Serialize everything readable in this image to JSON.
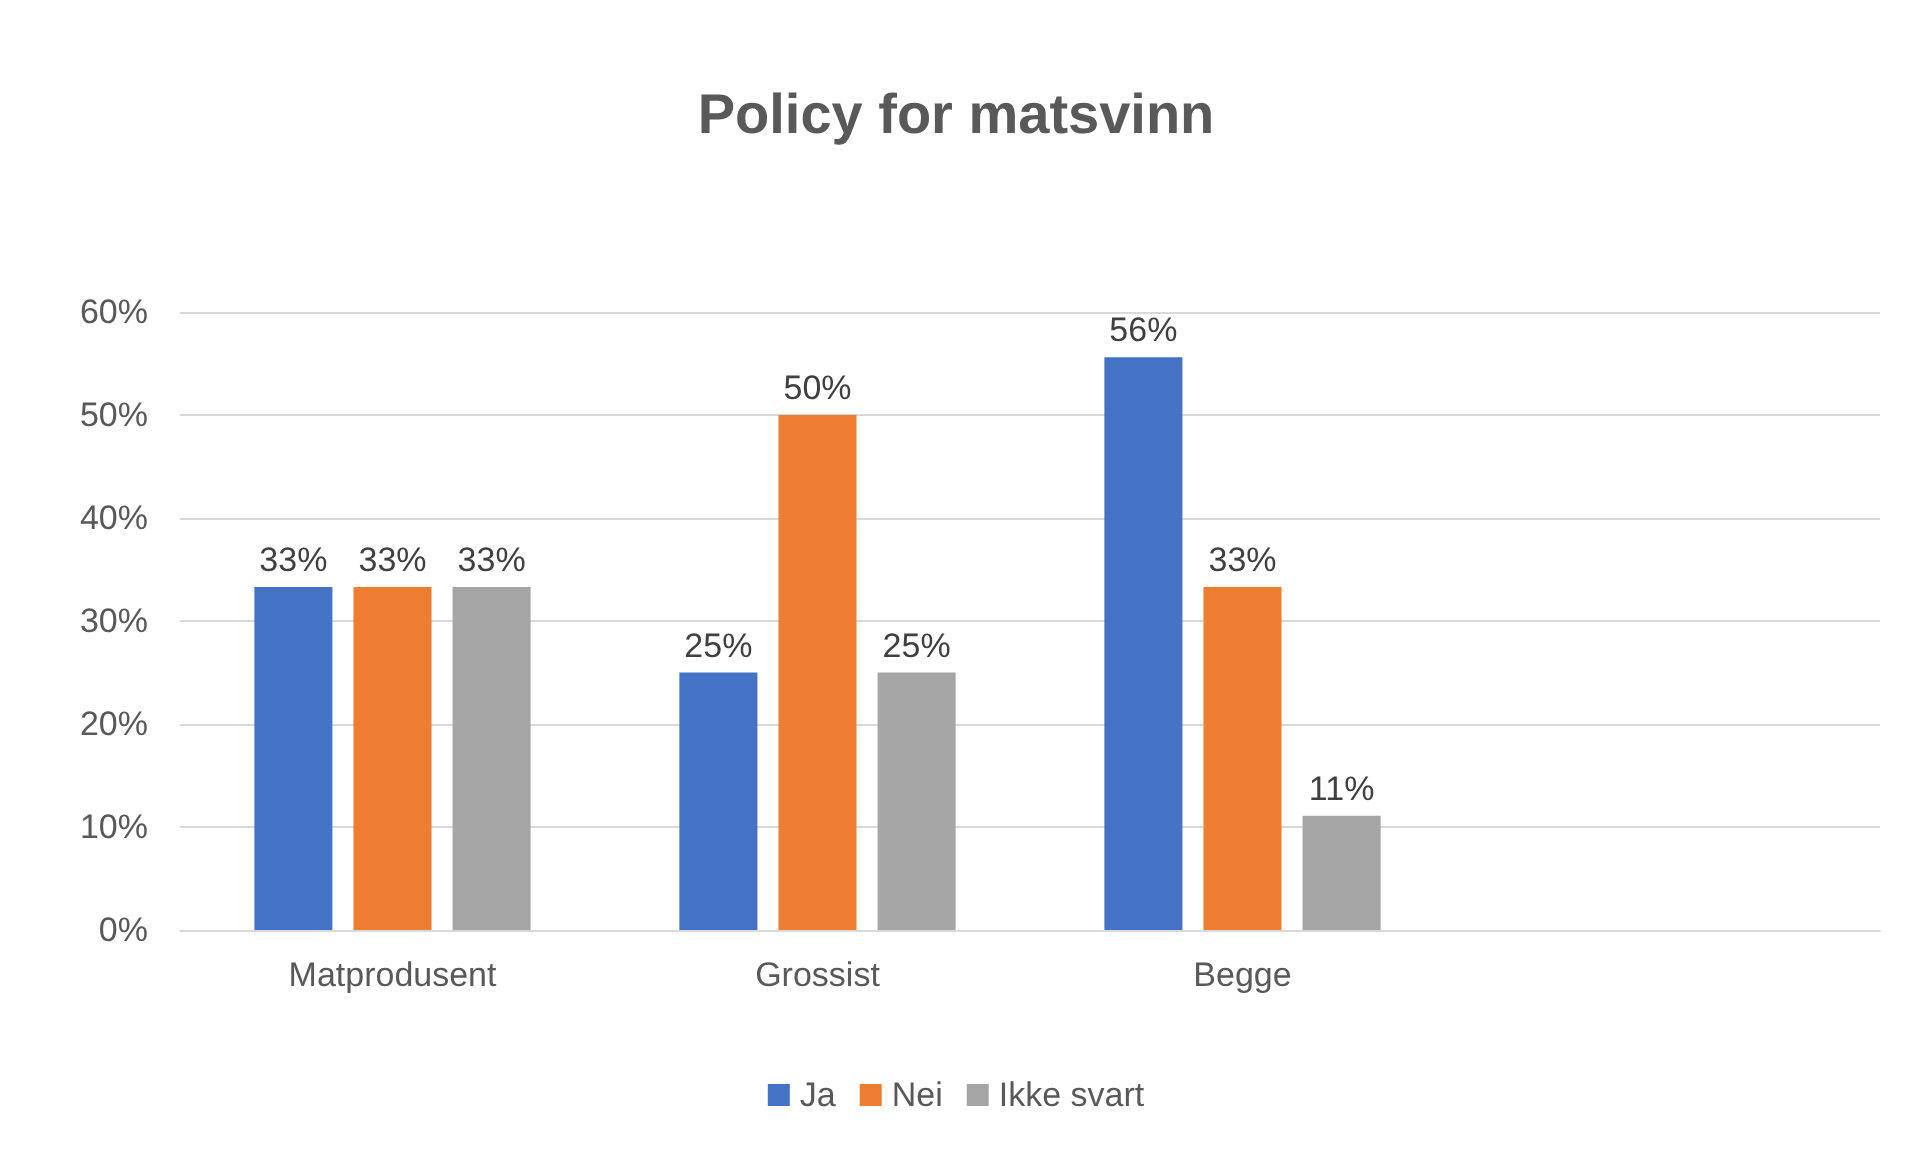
{
  "chart_data": {
    "type": "bar",
    "title": "Policy for matsvinn",
    "categories": [
      "Matprodusent",
      "Grossist",
      "Begge",
      null
    ],
    "series": [
      {
        "name": "Ja",
        "color": "#4472c4",
        "values": [
          33.3,
          25,
          55.6,
          null
        ],
        "value_labels": [
          "33%",
          "25%",
          "56%",
          null
        ]
      },
      {
        "name": "Nei",
        "color": "#ed7d31",
        "values": [
          33.3,
          50,
          33.3,
          null
        ],
        "value_labels": [
          "33%",
          "50%",
          "33%",
          null
        ]
      },
      {
        "name": "Ikke svart",
        "color": "#a5a5a5",
        "values": [
          33.3,
          25,
          11.1,
          null
        ],
        "value_labels": [
          "33%",
          "25%",
          "11%",
          null
        ]
      }
    ],
    "ylim": [
      0,
      60
    ],
    "yticks": [
      {
        "value": 0,
        "label": "0%"
      },
      {
        "value": 10,
        "label": "10%"
      },
      {
        "value": 20,
        "label": "20%"
      },
      {
        "value": 30,
        "label": "30%"
      },
      {
        "value": 40,
        "label": "40%"
      },
      {
        "value": 50,
        "label": "50%"
      },
      {
        "value": 60,
        "label": "60%"
      }
    ],
    "grid": "y",
    "legend": "bottom"
  }
}
